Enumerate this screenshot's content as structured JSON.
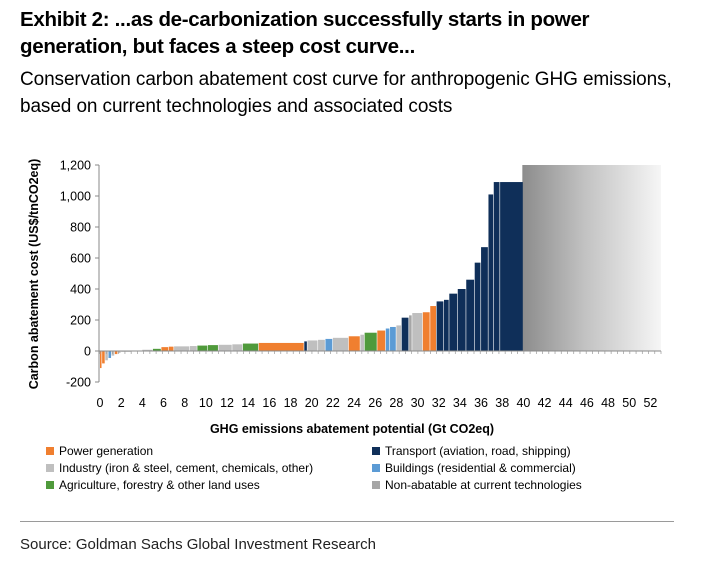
{
  "title": "Exhibit 2: ...as de-carbonization successfully starts in power generation, but faces a steep cost curve...",
  "subtitle": "Conservation carbon abatement cost curve for anthropogenic GHG emissions, based on current technologies and associated costs",
  "source": "Source: Goldman Sachs Global Investment Research",
  "colors": {
    "power": "#f07f2f",
    "transport": "#0f2f59",
    "industry": "#bfbfbf",
    "buildings": "#5b9bd5",
    "agriculture": "#4f9a3b",
    "nonabatable": "#a6a6a6"
  },
  "chart_data": {
    "type": "bar",
    "title": "",
    "xlabel": "GHG emissions abatement potential  (Gt CO2eq)",
    "ylabel": "Carbon abatement cost (US$/tnCO2eq)",
    "xlim": [
      0,
      53
    ],
    "ylim": [
      -200,
      1200
    ],
    "x_ticks": [
      "0",
      "2",
      "4",
      "6",
      "8",
      "10",
      "12",
      "14",
      "16",
      "18",
      "20",
      "22",
      "24",
      "26",
      "28",
      "30",
      "32",
      "34",
      "36",
      "38",
      "40",
      "42",
      "44",
      "46",
      "48",
      "50",
      "52"
    ],
    "y_ticks": [
      "-200",
      "0",
      "200",
      "400",
      "600",
      "800",
      "1,000",
      "1,200"
    ],
    "grid": false,
    "legend_position": "bottom",
    "legend": [
      {
        "key": "power",
        "label": "Power generation"
      },
      {
        "key": "transport",
        "label": "Transport (aviation, road, shipping)"
      },
      {
        "key": "industry",
        "label": "Industry (iron & steel, cement, chemicals, other)"
      },
      {
        "key": "buildings",
        "label": "Buildings (residential & commercial)"
      },
      {
        "key": "agriculture",
        "label": "Agriculture, forestry & other land uses"
      },
      {
        "key": "nonabatable",
        "label": "Non-abatable at current  technologies"
      }
    ],
    "bars": [
      {
        "x0": 0.0,
        "x1": 0.2,
        "value": -110,
        "cat": "power"
      },
      {
        "x0": 0.2,
        "x1": 0.5,
        "value": -80,
        "cat": "power"
      },
      {
        "x0": 0.5,
        "x1": 0.8,
        "value": -60,
        "cat": "industry"
      },
      {
        "x0": 0.8,
        "x1": 1.1,
        "value": -45,
        "cat": "buildings"
      },
      {
        "x0": 1.1,
        "x1": 1.4,
        "value": -30,
        "cat": "industry"
      },
      {
        "x0": 1.4,
        "x1": 1.7,
        "value": -20,
        "cat": "power"
      },
      {
        "x0": 1.7,
        "x1": 2.0,
        "value": -12,
        "cat": "industry"
      },
      {
        "x0": 2.0,
        "x1": 3.0,
        "value": -5,
        "cat": "industry"
      },
      {
        "x0": 3.0,
        "x1": 4.0,
        "value": 2,
        "cat": "industry"
      },
      {
        "x0": 4.0,
        "x1": 5.0,
        "value": 8,
        "cat": "industry"
      },
      {
        "x0": 5.0,
        "x1": 5.8,
        "value": 14,
        "cat": "agriculture"
      },
      {
        "x0": 5.8,
        "x1": 6.5,
        "value": 25,
        "cat": "power"
      },
      {
        "x0": 6.5,
        "x1": 7.0,
        "value": 28,
        "cat": "power"
      },
      {
        "x0": 7.0,
        "x1": 8.5,
        "value": 30,
        "cat": "industry"
      },
      {
        "x0": 8.5,
        "x1": 9.2,
        "value": 32,
        "cat": "industry"
      },
      {
        "x0": 9.2,
        "x1": 10.2,
        "value": 35,
        "cat": "agriculture"
      },
      {
        "x0": 10.2,
        "x1": 11.2,
        "value": 38,
        "cat": "agriculture"
      },
      {
        "x0": 11.2,
        "x1": 12.5,
        "value": 40,
        "cat": "industry"
      },
      {
        "x0": 12.5,
        "x1": 13.5,
        "value": 43,
        "cat": "industry"
      },
      {
        "x0": 13.5,
        "x1": 15.0,
        "value": 48,
        "cat": "agriculture"
      },
      {
        "x0": 15.0,
        "x1": 19.3,
        "value": 52,
        "cat": "power"
      },
      {
        "x0": 19.3,
        "x1": 19.6,
        "value": 62,
        "cat": "transport"
      },
      {
        "x0": 19.6,
        "x1": 20.6,
        "value": 68,
        "cat": "industry"
      },
      {
        "x0": 20.6,
        "x1": 21.3,
        "value": 72,
        "cat": "industry"
      },
      {
        "x0": 21.3,
        "x1": 22.0,
        "value": 78,
        "cat": "buildings"
      },
      {
        "x0": 22.0,
        "x1": 23.5,
        "value": 85,
        "cat": "industry"
      },
      {
        "x0": 23.5,
        "x1": 24.6,
        "value": 95,
        "cat": "power"
      },
      {
        "x0": 24.6,
        "x1": 25.0,
        "value": 105,
        "cat": "industry"
      },
      {
        "x0": 25.0,
        "x1": 26.2,
        "value": 118,
        "cat": "agriculture"
      },
      {
        "x0": 26.2,
        "x1": 27.0,
        "value": 132,
        "cat": "power"
      },
      {
        "x0": 27.0,
        "x1": 27.4,
        "value": 145,
        "cat": "buildings"
      },
      {
        "x0": 27.4,
        "x1": 28.0,
        "value": 155,
        "cat": "buildings"
      },
      {
        "x0": 28.0,
        "x1": 28.5,
        "value": 165,
        "cat": "industry"
      },
      {
        "x0": 28.5,
        "x1": 29.2,
        "value": 215,
        "cat": "transport"
      },
      {
        "x0": 29.2,
        "x1": 29.5,
        "value": 230,
        "cat": "nonabatable"
      },
      {
        "x0": 29.5,
        "x1": 30.5,
        "value": 245,
        "cat": "industry"
      },
      {
        "x0": 30.5,
        "x1": 31.2,
        "value": 250,
        "cat": "power"
      },
      {
        "x0": 31.2,
        "x1": 31.8,
        "value": 290,
        "cat": "power"
      },
      {
        "x0": 31.8,
        "x1": 32.5,
        "value": 320,
        "cat": "transport"
      },
      {
        "x0": 32.5,
        "x1": 33.0,
        "value": 330,
        "cat": "transport"
      },
      {
        "x0": 33.0,
        "x1": 33.8,
        "value": 370,
        "cat": "transport"
      },
      {
        "x0": 33.8,
        "x1": 34.6,
        "value": 400,
        "cat": "transport"
      },
      {
        "x0": 34.6,
        "x1": 35.4,
        "value": 460,
        "cat": "transport"
      },
      {
        "x0": 35.4,
        "x1": 36.0,
        "value": 570,
        "cat": "transport"
      },
      {
        "x0": 36.0,
        "x1": 36.7,
        "value": 670,
        "cat": "transport"
      },
      {
        "x0": 36.7,
        "x1": 37.2,
        "value": 1010,
        "cat": "transport"
      },
      {
        "x0": 37.2,
        "x1": 37.8,
        "value": 1090,
        "cat": "transport"
      },
      {
        "x0": 37.8,
        "x1": 40.0,
        "value": 1090,
        "cat": "transport"
      }
    ],
    "nonabatable_region": {
      "x0": 39.9,
      "x1": 53.0,
      "value": 1200,
      "cat": "nonabatable"
    }
  }
}
